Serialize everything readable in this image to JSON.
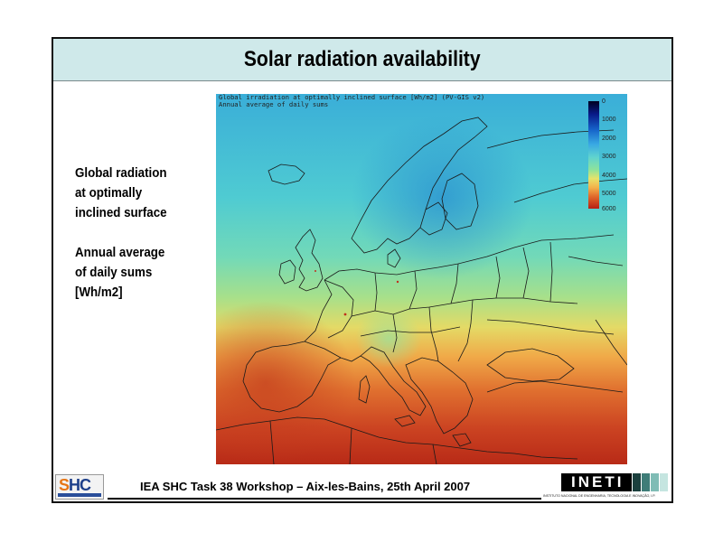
{
  "slide": {
    "title": "Solar radiation availability",
    "side_text": {
      "lines_a": [
        "Global radiation",
        "at  optimally",
        "inclined surface"
      ],
      "lines_b": [
        "Annual average",
        "of daily sums",
        "[Wh/m2]"
      ]
    }
  },
  "map": {
    "caption_line1": "Global irradiation at optimally inclined surface [Wh/m2] (PV-GIS v2)",
    "caption_line2": "Annual average of daily sums",
    "legend_ticks": [
      "0",
      "1000",
      "2000",
      "3000",
      "4000",
      "5000",
      "6000"
    ],
    "colors": {
      "north": "#38c0d6",
      "mid_north": "#5fd3cf",
      "center": "#9be08f",
      "mid_south": "#f1c45a",
      "south": "#d7552a",
      "deep_south": "#b01e14",
      "border": "#1a1a1a"
    }
  },
  "footer": {
    "text": "IEA SHC Task 38 Workshop – Aix-les-Bains, 25th April 2007",
    "left_logo": "SHC",
    "right_logo": "INETI",
    "right_logo_subtitle": "INSTITUTO NACIONAL DE ENGENHARIA, TECNOLOGIA E INOVAÇÃO, I.P."
  },
  "colors": {
    "title_bar": "#cfe9ea",
    "slide_border": "#111111"
  }
}
